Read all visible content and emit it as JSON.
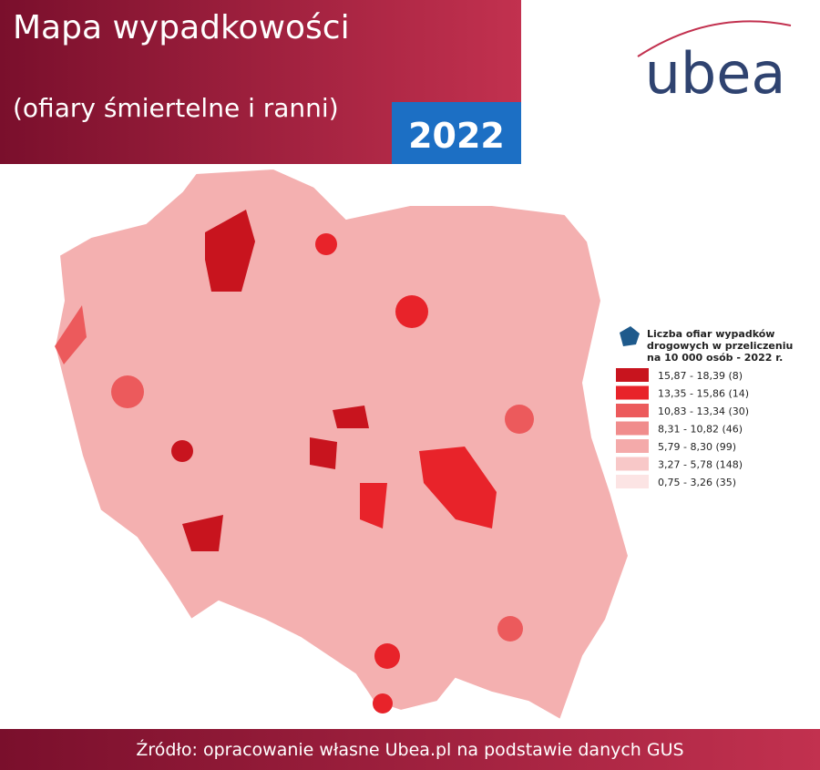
{
  "header": {
    "title": "Mapa wypadkowości",
    "subtitle": "(ofiary śmiertelne i ranni)",
    "year": "2022"
  },
  "logo": "ubea",
  "legend": {
    "title_lines": [
      "Liczba ofiar wypadków",
      "drogowych w przeliczeniu",
      "na 10 000 osób - 2022 r."
    ],
    "items": [
      {
        "label": "15,87 - 18,39 (8)",
        "color": "#c8141e"
      },
      {
        "label": "13,35 - 15,86 (14)",
        "color": "#e8232a"
      },
      {
        "label": "10,83 - 13,34 (30)",
        "color": "#ec5a5c"
      },
      {
        "label": "8,31 - 10,82 (46)",
        "color": "#f08c8c"
      },
      {
        "label": "5,79 - 8,30 (99)",
        "color": "#f4aaaa"
      },
      {
        "label": "3,27 - 5,78 (148)",
        "color": "#f8c8c8"
      },
      {
        "label": "0,75 - 3,26 (35)",
        "color": "#fce4e4"
      }
    ]
  },
  "footer": {
    "source": "Źródło: opracowanie własne Ubea.pl na podstawie danych GUS"
  }
}
